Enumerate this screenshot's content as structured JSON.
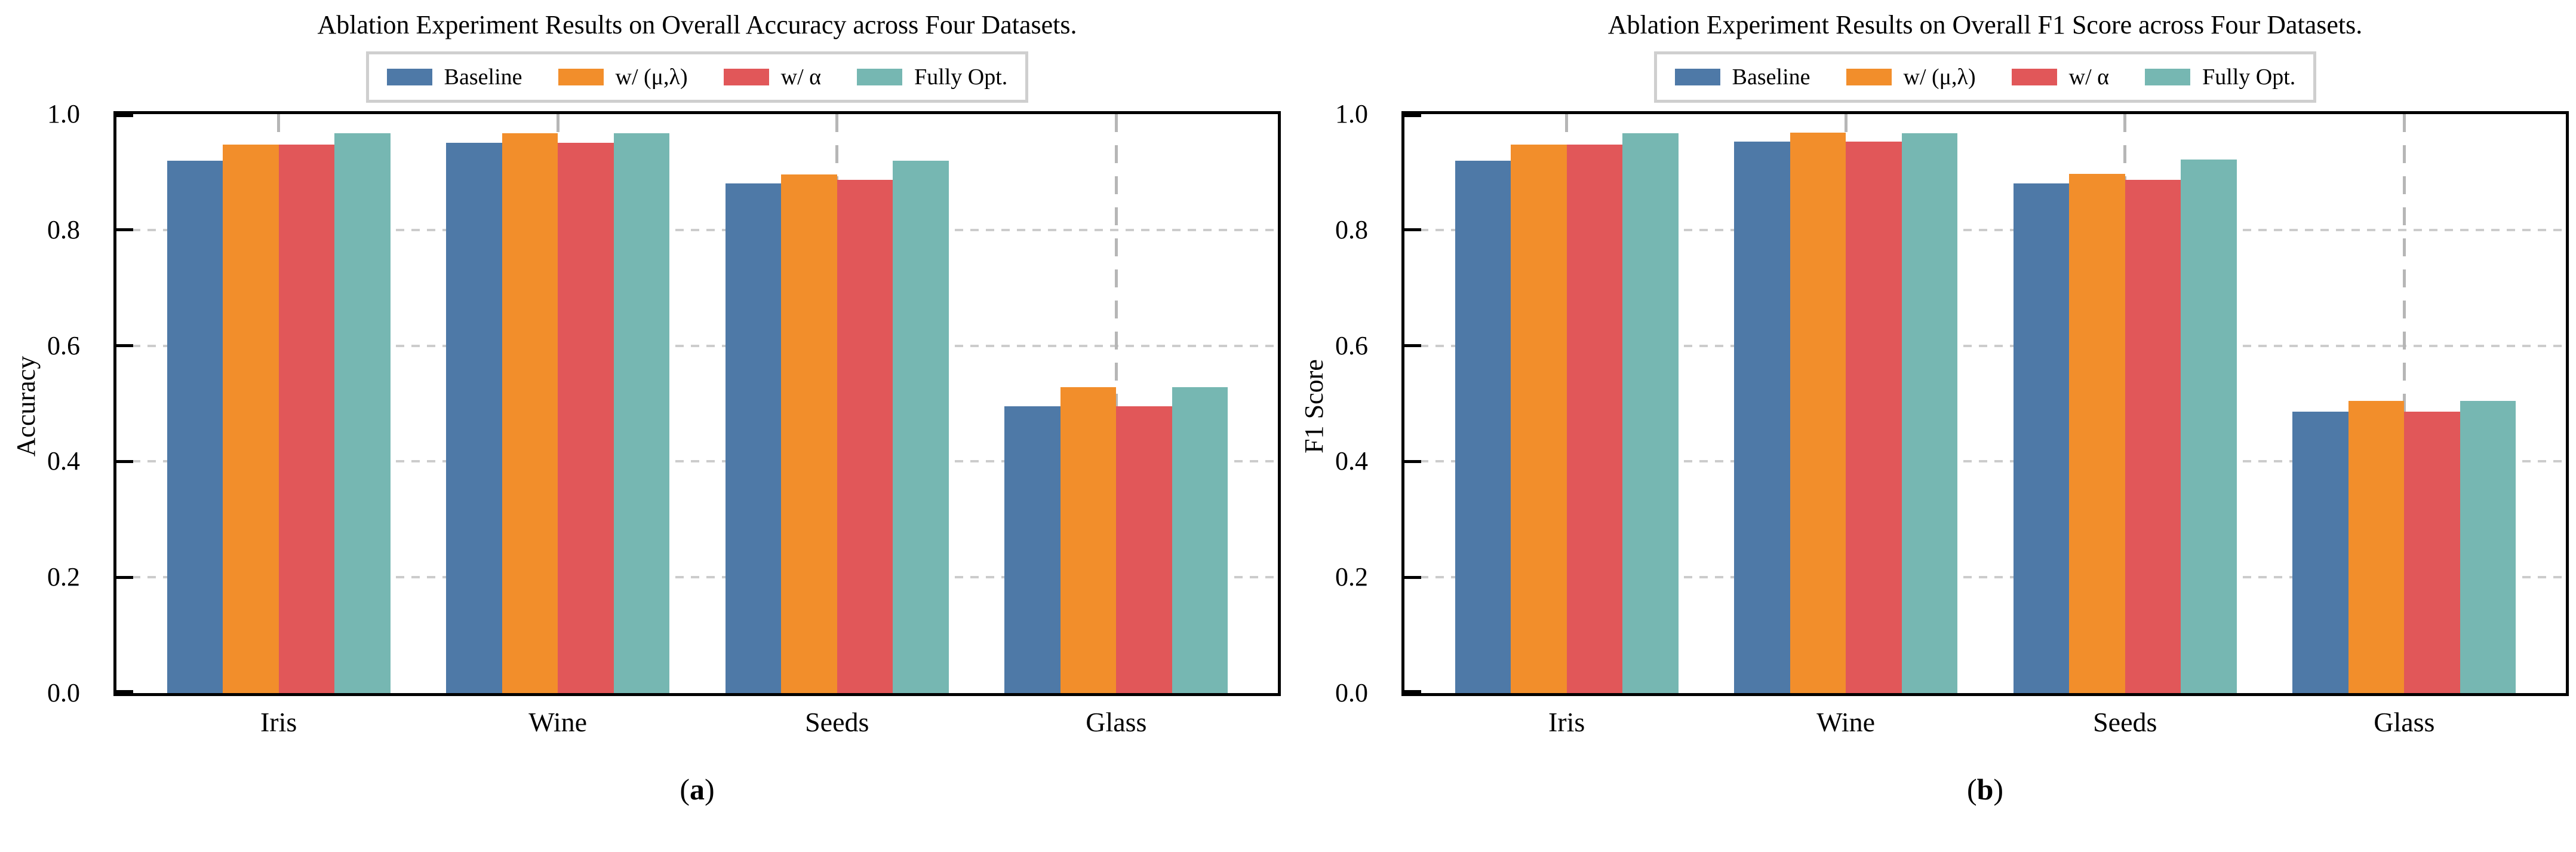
{
  "palette": {
    "baseline_blue": "#4e79a7",
    "mu_lambda_orange": "#f28e2b",
    "alpha_red": "#e15759",
    "fully_opt_teal": "#76b7b2",
    "grid_horizontal": "#cccccc",
    "grid_vertical": "#b6b6b6",
    "axis_black": "#000000",
    "legend_border": "#cfcfcf"
  },
  "chart_data": [
    {
      "type": "bar",
      "title": "Ablation Experiment Results on Overall Accuracy across Four Datasets.",
      "ylabel": "Accuracy",
      "xlabel": "",
      "caption_open": "(",
      "caption_letter": "a",
      "caption_close": ")",
      "categories": [
        "Iris",
        "Wine",
        "Seeds",
        "Glass"
      ],
      "series": [
        {
          "name": "Baseline",
          "color": "#4e79a7",
          "values": [
            0.92,
            0.95,
            0.88,
            0.495
          ]
        },
        {
          "name": "w/ (μ,λ)",
          "color": "#f28e2b",
          "values": [
            0.947,
            0.967,
            0.896,
            0.528
          ]
        },
        {
          "name": "w/ α",
          "color": "#e15759",
          "values": [
            0.947,
            0.95,
            0.886,
            0.495
          ]
        },
        {
          "name": "Fully Opt.",
          "color": "#76b7b2",
          "values": [
            0.967,
            0.967,
            0.92,
            0.528
          ]
        }
      ],
      "ylim": [
        0.0,
        1.0
      ],
      "yticks": [
        0.0,
        0.2,
        0.4,
        0.6,
        0.8,
        1.0
      ],
      "ytick_labels": [
        "0.0",
        "0.2",
        "0.4",
        "0.6",
        "0.8",
        "1.0"
      ],
      "grid": "dashed, horizontal at y-ticks and vertical at category centers",
      "legend_position": "top center, horizontal, boxed"
    },
    {
      "type": "bar",
      "title": "Ablation Experiment Results on Overall F1 Score across Four Datasets.",
      "ylabel": "F1 Score",
      "xlabel": "",
      "caption_open": "(",
      "caption_letter": "b",
      "caption_close": ")",
      "categories": [
        "Iris",
        "Wine",
        "Seeds",
        "Glass"
      ],
      "series": [
        {
          "name": "Baseline",
          "color": "#4e79a7",
          "values": [
            0.92,
            0.953,
            0.88,
            0.486
          ]
        },
        {
          "name": "w/ (μ,λ)",
          "color": "#f28e2b",
          "values": [
            0.947,
            0.968,
            0.897,
            0.505
          ]
        },
        {
          "name": "w/ α",
          "color": "#e15759",
          "values": [
            0.947,
            0.953,
            0.887,
            0.486
          ]
        },
        {
          "name": "Fully Opt.",
          "color": "#76b7b2",
          "values": [
            0.967,
            0.967,
            0.922,
            0.505
          ]
        }
      ],
      "ylim": [
        0.0,
        1.0
      ],
      "yticks": [
        0.0,
        0.2,
        0.4,
        0.6,
        0.8,
        1.0
      ],
      "ytick_labels": [
        "0.0",
        "0.2",
        "0.4",
        "0.6",
        "0.8",
        "1.0"
      ],
      "grid": "dashed, horizontal at y-ticks and vertical at category centers",
      "legend_position": "top center, horizontal, boxed"
    }
  ]
}
